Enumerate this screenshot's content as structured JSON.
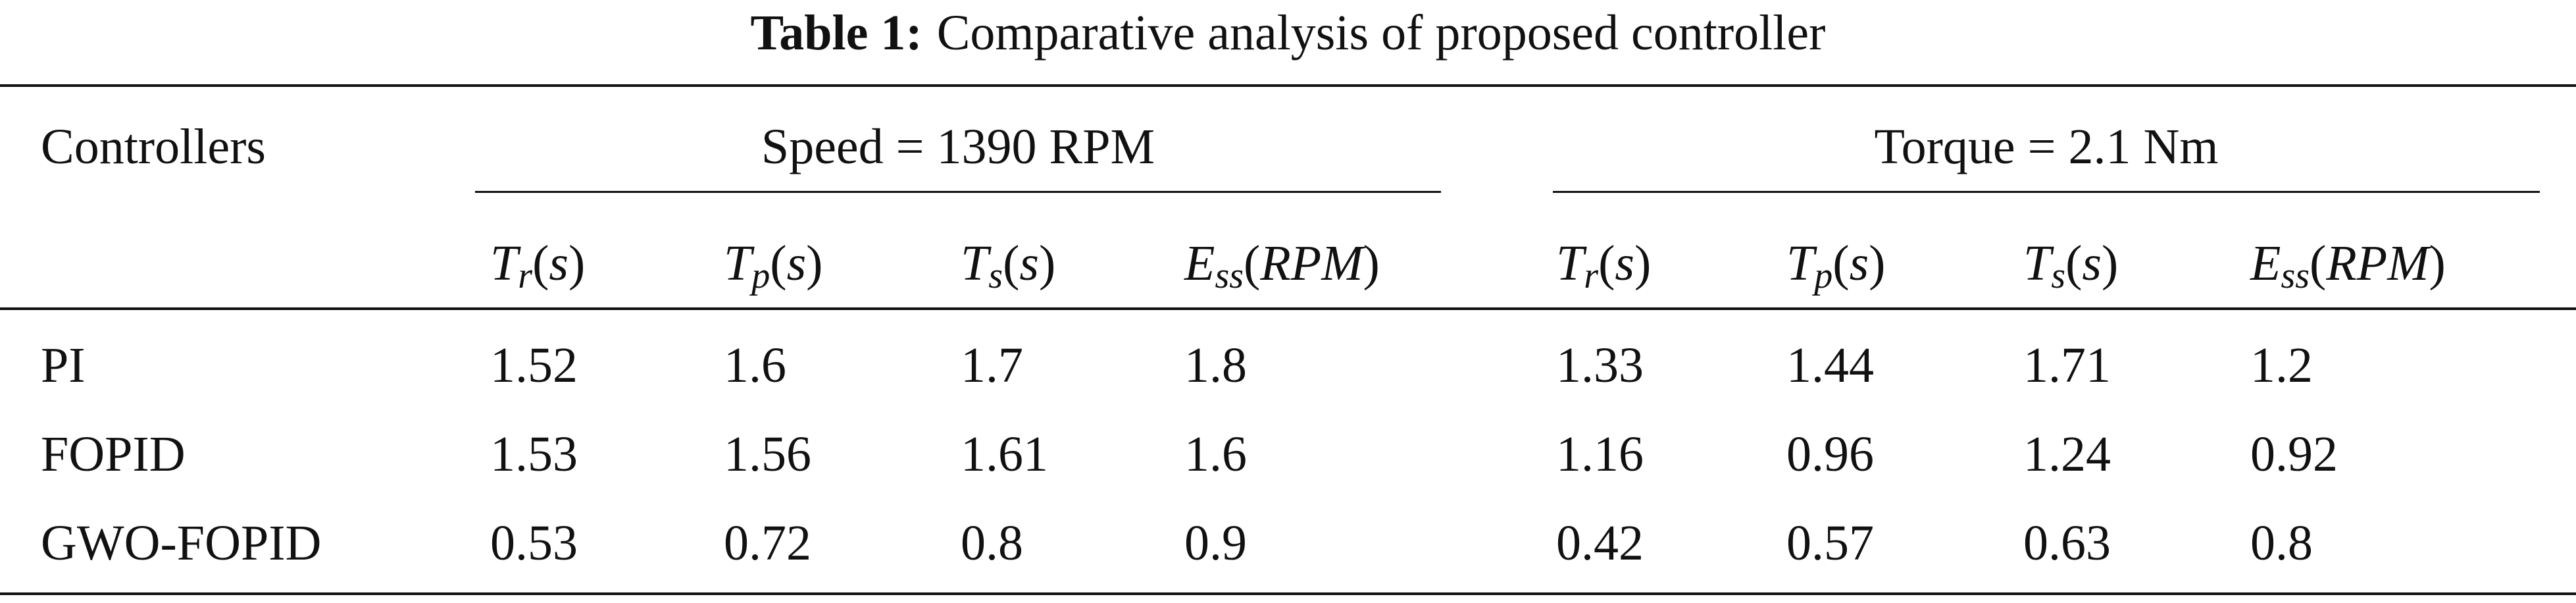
{
  "caption": {
    "label": "Table 1:",
    "text": "Comparative analysis of proposed controller"
  },
  "header": {
    "first_col": "Controllers",
    "groups": [
      "Speed = 1390 RPM",
      "Torque = 2.1 Nm"
    ],
    "columns": [
      {
        "symbol": "T",
        "sub": "r",
        "unit": "s"
      },
      {
        "symbol": "T",
        "sub": "p",
        "unit": "s"
      },
      {
        "symbol": "T",
        "sub": "s",
        "unit": "s"
      },
      {
        "symbol": "E",
        "sub": "ss",
        "unit": "RPM"
      },
      {
        "symbol": "T",
        "sub": "r",
        "unit": "s"
      },
      {
        "symbol": "T",
        "sub": "p",
        "unit": "s"
      },
      {
        "symbol": "T",
        "sub": "s",
        "unit": "s"
      },
      {
        "symbol": "E",
        "sub": "ss",
        "unit": "RPM"
      }
    ]
  },
  "rows": [
    {
      "name": "PI",
      "values": [
        "1.52",
        "1.6",
        "1.7",
        "1.8",
        "1.33",
        "1.44",
        "1.71",
        "1.2"
      ]
    },
    {
      "name": "FOPID",
      "values": [
        "1.53",
        "1.56",
        "1.61",
        "1.6",
        "1.16",
        "0.96",
        "1.24",
        "0.92"
      ]
    },
    {
      "name": "GWO-FOPID",
      "values": [
        "0.53",
        "0.72",
        "0.8",
        "0.9",
        "0.42",
        "0.57",
        "0.63",
        "0.8"
      ]
    }
  ]
}
